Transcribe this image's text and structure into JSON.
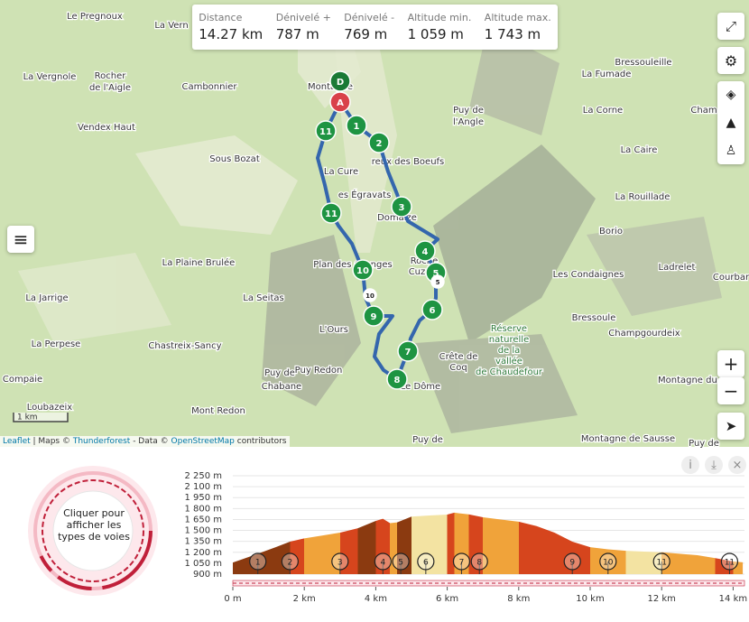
{
  "stats": [
    {
      "label": "Distance",
      "value": "14.27 km"
    },
    {
      "label": "Dénivelé +",
      "value": "787 m"
    },
    {
      "label": "Dénivelé -",
      "value": "769 m"
    },
    {
      "label": "Altitude min.",
      "value": "1 059 m"
    },
    {
      "label": "Altitude max.",
      "value": "1 743 m"
    }
  ],
  "map": {
    "places": [
      "Le Pregnoux",
      "La Vern",
      "La Vergnole",
      "Rocher",
      "de l'Aigle",
      "Cambonnier",
      "Vendex Haut",
      "Sous Bozat",
      "Montagne",
      "Puy de",
      "l'Angle",
      "La Fumade",
      "Bressouleille",
      "La Corne",
      "Cham",
      "La Caire",
      "reux des Boeufs",
      "La Cure",
      "es Égravats",
      "Domaize",
      "La Rouillade",
      "Borio",
      "Roche",
      "Cuz",
      "La Plaine Brulée",
      "Plan des Granges",
      "Les Condaignes",
      "Ladrelet",
      "Courbar",
      "La Jarrige",
      "La Seitas",
      "Bressoule",
      "L'Ours",
      "Champgourdeix",
      "La Perpese",
      "Chastreix-Sancy",
      "Puy de",
      "Chabane",
      "Puy Redon",
      "Compaie",
      "Loubazeix",
      "Mont Redon",
      "Le Dôme",
      "Montagne du Be",
      "Puy de",
      "Montagne de Sausse",
      "Puy de"
    ],
    "reserve": [
      "Réserve",
      "naturelle",
      "de la",
      "vallée",
      "de Chaudefour"
    ],
    "crest": [
      "Crête de",
      "Coq"
    ],
    "start_label": "D",
    "end_label": "A",
    "waypoints": [
      "1",
      "2",
      "3",
      "4",
      "5",
      "6",
      "7",
      "8",
      "9",
      "10",
      "11",
      "11"
    ],
    "small_markers": [
      "10",
      "5"
    ],
    "scale": "1 km",
    "attribution": {
      "leaflet": "Leaflet",
      "sep1": " | Maps © ",
      "maps": "Thunderforest",
      "sep2": " - Data © ",
      "data": "OpenStreetMap",
      "tail": " contributors"
    },
    "zoom_in": "+",
    "zoom_out": "−"
  },
  "profile_panel": {
    "road_types": "Cliquer pour afficher les types de voies",
    "info": "i",
    "close": "×"
  },
  "chart_data": {
    "type": "area",
    "x": [
      0,
      0.3,
      0.7,
      1.2,
      1.6,
      2,
      2.5,
      3,
      3.5,
      4,
      4.2,
      4.4,
      4.6,
      5,
      5.5,
      6,
      6.2,
      6.6,
      7,
      7.5,
      8,
      8.5,
      9,
      9.5,
      10,
      10.5,
      11,
      11.5,
      12,
      12.5,
      13,
      13.5,
      14,
      14.27
    ],
    "values": [
      1059,
      1110,
      1180,
      1270,
      1346,
      1390,
      1430,
      1470,
      1530,
      1630,
      1660,
      1600,
      1610,
      1690,
      1705,
      1718,
      1743,
      1720,
      1680,
      1650,
      1620,
      1560,
      1470,
      1346,
      1270,
      1240,
      1220,
      1210,
      1200,
      1180,
      1160,
      1120,
      1075,
      1062
    ],
    "xlim": [
      0,
      14.27
    ],
    "ylim": [
      900,
      2250
    ],
    "xticks": [
      {
        "value": 0,
        "label": "0 m"
      },
      {
        "value": 2,
        "label": "2 km"
      },
      {
        "value": 4,
        "label": "4 km"
      },
      {
        "value": 6,
        "label": "6 km"
      },
      {
        "value": 8,
        "label": "8 km"
      },
      {
        "value": 10,
        "label": "10 km"
      },
      {
        "value": 12,
        "label": "12 km"
      },
      {
        "value": 14,
        "label": "14 km"
      }
    ],
    "yticks": [
      {
        "value": 900,
        "label": "900 m"
      },
      {
        "value": 1050,
        "label": "1 050 m"
      },
      {
        "value": 1200,
        "label": "1 200 m"
      },
      {
        "value": 1350,
        "label": "1 350 m"
      },
      {
        "value": 1500,
        "label": "1 500 m"
      },
      {
        "value": 1650,
        "label": "1 650 m"
      },
      {
        "value": 1800,
        "label": "1 800 m"
      },
      {
        "value": 1950,
        "label": "1 950 m"
      },
      {
        "value": 2100,
        "label": "2 100 m"
      },
      {
        "value": 2250,
        "label": "2 250 m"
      }
    ],
    "grid": true,
    "waypoints": {
      "x": [
        0.7,
        1.6,
        3.0,
        4.2,
        4.7,
        5.4,
        6.4,
        6.9,
        9.5,
        10.5,
        12.0,
        13.9
      ],
      "labels": [
        "1",
        "2",
        "3",
        "4",
        "5",
        "6",
        "7",
        "8",
        "9",
        "10",
        "11",
        "11"
      ]
    }
  }
}
